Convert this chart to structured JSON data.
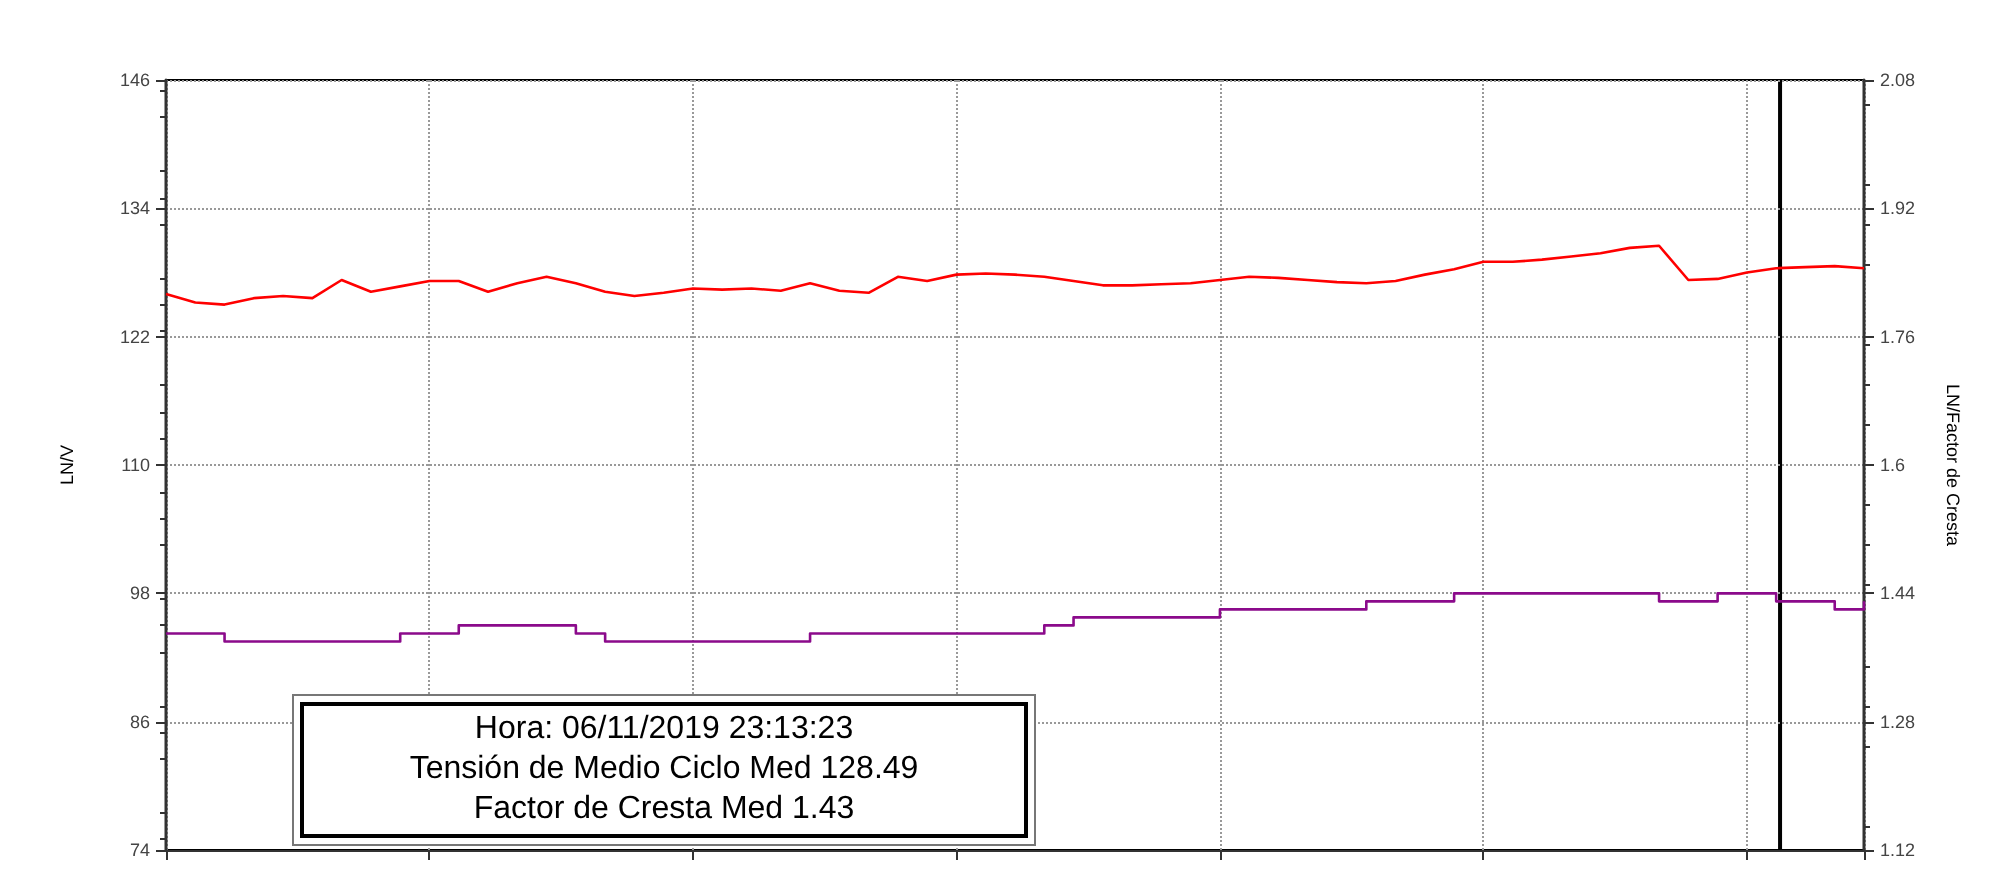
{
  "chart_data": {
    "type": "line",
    "ylabel": "LN/V",
    "y2label": "LN/Factor de Cresta",
    "categories": [
      null,
      null,
      null,
      null,
      null,
      null,
      null,
      null,
      null,
      null,
      null,
      null,
      null,
      null,
      null,
      null,
      null,
      null,
      null,
      null,
      null,
      null,
      null,
      null,
      null,
      null,
      null,
      null,
      null,
      null,
      null,
      null,
      null,
      null,
      null,
      null,
      null,
      null,
      null,
      null,
      null,
      null,
      null,
      null,
      null,
      null,
      null,
      null,
      null,
      null,
      null,
      null,
      null,
      null,
      null,
      null,
      null,
      null,
      null
    ],
    "series": [
      {
        "color": "#ff0000",
        "values": [
          126.0,
          125.2,
          125.0,
          125.6,
          125.8,
          125.6,
          127.3,
          126.2,
          126.7,
          127.2,
          127.2,
          126.2,
          127.0,
          127.6,
          127.0,
          126.2,
          125.8,
          126.1,
          126.5,
          126.4,
          126.5,
          126.3,
          127.0,
          126.3,
          126.1,
          127.6,
          127.2,
          127.8,
          127.9,
          127.8,
          127.6,
          127.2,
          126.8,
          126.8,
          126.9,
          127.0,
          127.3,
          127.6,
          127.5,
          127.3,
          127.1,
          127.0,
          127.2,
          127.8,
          128.3,
          129.0,
          129.0,
          129.2,
          129.5,
          129.8,
          130.3,
          130.5,
          127.3,
          127.4,
          128.0,
          128.4,
          128.5,
          128.6,
          128.4
        ]
      },
      {
        "type": "step",
        "axis": "y2",
        "color": "#8b0a8b",
        "values": [
          1.39,
          1.39,
          1.38,
          1.38,
          1.38,
          1.38,
          1.38,
          1.38,
          1.39,
          1.39,
          1.4,
          1.4,
          1.4,
          1.4,
          1.39,
          1.38,
          1.38,
          1.38,
          1.38,
          1.38,
          1.38,
          1.38,
          1.39,
          1.39,
          1.39,
          1.39,
          1.39,
          1.39,
          1.39,
          1.39,
          1.4,
          1.41,
          1.41,
          1.41,
          1.41,
          1.41,
          1.42,
          1.42,
          1.42,
          1.42,
          1.42,
          1.43,
          1.43,
          1.43,
          1.44,
          1.44,
          1.44,
          1.44,
          1.44,
          1.44,
          1.44,
          1.43,
          1.43,
          1.44,
          1.44,
          1.43,
          1.43,
          1.42,
          1.43
        ]
      }
    ],
    "ylim": [
      74,
      146
    ],
    "yticks": [
      74,
      86,
      98,
      110,
      122,
      134,
      146
    ],
    "y2lim": [
      1.12,
      2.08
    ],
    "y2ticks": [
      1.12,
      1.28,
      1.44,
      1.6,
      1.76,
      1.92,
      2.08
    ],
    "annotations": [
      "Hora: 06/11/2019 23:13:23",
      "Tensión de Medio Ciclo Med 128.49",
      "Factor de Cresta Med 1.43"
    ],
    "grid": true,
    "marker": "none",
    "line_style": "solid",
    "tick_labels": "y"
  }
}
